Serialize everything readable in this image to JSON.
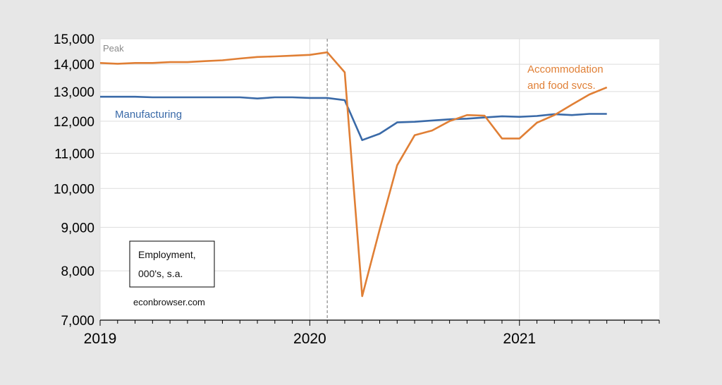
{
  "chart_data": {
    "type": "line",
    "y_scale": "log",
    "ylim": [
      7000,
      15000
    ],
    "y_ticks": [
      7000,
      8000,
      9000,
      10000,
      11000,
      12000,
      13000,
      14000,
      15000
    ],
    "y_tick_labels": [
      "7,000",
      "8,000",
      "9,000",
      "10,000",
      "11,000",
      "12,000",
      "13,000",
      "14,000",
      "15,000"
    ],
    "x_tick_labels": [
      "2019",
      "2020",
      "2021"
    ],
    "x_start": "2019-01",
    "x_end": "2021-09",
    "grid": true,
    "peak": {
      "date": "2020-02",
      "label": "Peak"
    },
    "annotation_box": {
      "line1": "Employment,",
      "line2": "000's, s.a."
    },
    "source": "econbrowser.com",
    "series": [
      {
        "name": "Manufacturing",
        "color": "#3a6aa8",
        "x": [
          "2019-01",
          "2019-02",
          "2019-03",
          "2019-04",
          "2019-05",
          "2019-06",
          "2019-07",
          "2019-08",
          "2019-09",
          "2019-10",
          "2019-11",
          "2019-12",
          "2020-01",
          "2020-02",
          "2020-03",
          "2020-04",
          "2020-05",
          "2020-06",
          "2020-07",
          "2020-08",
          "2020-09",
          "2020-10",
          "2020-11",
          "2020-12",
          "2021-01",
          "2021-02",
          "2021-03",
          "2021-04",
          "2021-05",
          "2021-06"
        ],
        "values": [
          12820,
          12820,
          12820,
          12800,
          12800,
          12800,
          12800,
          12800,
          12800,
          12760,
          12800,
          12800,
          12780,
          12780,
          12700,
          11400,
          11600,
          11960,
          11980,
          12020,
          12060,
          12080,
          12120,
          12160,
          12140,
          12170,
          12230,
          12200,
          12240,
          12240
        ]
      },
      {
        "name": "Accommodation\nand food svcs.",
        "color": "#e07f35",
        "x": [
          "2019-01",
          "2019-02",
          "2019-03",
          "2019-04",
          "2019-05",
          "2019-06",
          "2019-07",
          "2019-08",
          "2019-09",
          "2019-10",
          "2019-11",
          "2019-12",
          "2020-01",
          "2020-02",
          "2020-03",
          "2020-04",
          "2020-05",
          "2020-06",
          "2020-07",
          "2020-08",
          "2020-09",
          "2020-10",
          "2020-11",
          "2020-12",
          "2021-01",
          "2021-02",
          "2021-03",
          "2021-04",
          "2021-05",
          "2021-06"
        ],
        "values": [
          14050,
          14020,
          14050,
          14050,
          14080,
          14080,
          14120,
          14150,
          14220,
          14280,
          14300,
          14330,
          14360,
          14460,
          13700,
          7470,
          8950,
          10650,
          11550,
          11700,
          12000,
          12200,
          12180,
          11450,
          11450,
          11950,
          12200,
          12550,
          12900,
          13150
        ]
      }
    ]
  }
}
